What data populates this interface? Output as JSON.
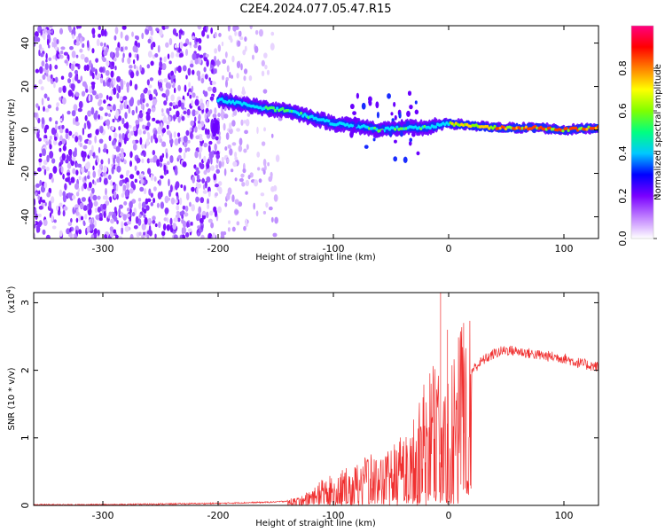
{
  "title": "C2E4.2024.077.05.47.R15",
  "chart_data": [
    {
      "type": "heatmap",
      "xlabel": "Height of straight line (km)",
      "ylabel": "Frequency (Hz)",
      "xlim": [
        -360,
        130
      ],
      "ylim": [
        -50,
        48
      ],
      "x_ticks": [
        -300,
        -200,
        -100,
        0,
        100
      ],
      "y_ticks": [
        -40,
        -20,
        0,
        20,
        40
      ],
      "colorbar": {
        "label": "Normalized spectral amplitude",
        "range": [
          0,
          1
        ],
        "ticks": [
          "0.0",
          "0.2",
          "0.4",
          "0.6",
          "0.8"
        ],
        "colormap": [
          "#ffffff",
          "#c080ff",
          "#7a00ff",
          "#0000ff",
          "#00c8ff",
          "#00ff80",
          "#80ff00",
          "#ffff00",
          "#ff8000",
          "#ff0000",
          "#ff0080"
        ]
      },
      "ridge": {
        "x": [
          -200,
          -180,
          -160,
          -140,
          -120,
          -100,
          -80,
          -60,
          -40,
          -20,
          0,
          20,
          40,
          60,
          80,
          100,
          130
        ],
        "frequency": [
          14,
          12,
          10,
          9,
          6,
          3,
          2,
          0,
          1,
          1,
          3,
          2,
          1,
          1,
          1,
          0,
          1
        ]
      }
    },
    {
      "type": "line",
      "xlabel": "Height of straight line (km)",
      "ylabel": "SNR (10 * v/v)",
      "ylabel_multiplier_base": "(x10",
      "ylabel_multiplier_exp": "4",
      "ylabel_multiplier_end": ")",
      "xlim": [
        -360,
        130
      ],
      "ylim": [
        0,
        3.15
      ],
      "x_ticks": [
        -300,
        -200,
        -100,
        0,
        100
      ],
      "y_ticks": [
        0,
        1,
        2,
        3
      ],
      "series": [
        {
          "color": "#f03030",
          "x": [
            -360,
            -300,
            -250,
            -200,
            -150,
            -130,
            -120,
            -110,
            -100,
            -90,
            -80,
            -70,
            -60,
            -50,
            -40,
            -30,
            -20,
            -15,
            -10,
            -5,
            0,
            10,
            20,
            30,
            40,
            50,
            60,
            70,
            80,
            90,
            100,
            110,
            120,
            130
          ],
          "values": [
            0.01,
            0.01,
            0.02,
            0.03,
            0.05,
            0.08,
            0.15,
            0.25,
            0.3,
            0.35,
            0.4,
            0.5,
            0.45,
            0.55,
            0.7,
            0.9,
            1.2,
            1.35,
            1.5,
            1.1,
            1.2,
            1.7,
            2.0,
            2.15,
            2.25,
            2.3,
            2.28,
            2.25,
            2.22,
            2.2,
            2.18,
            2.12,
            2.08,
            2.05
          ]
        }
      ]
    }
  ]
}
